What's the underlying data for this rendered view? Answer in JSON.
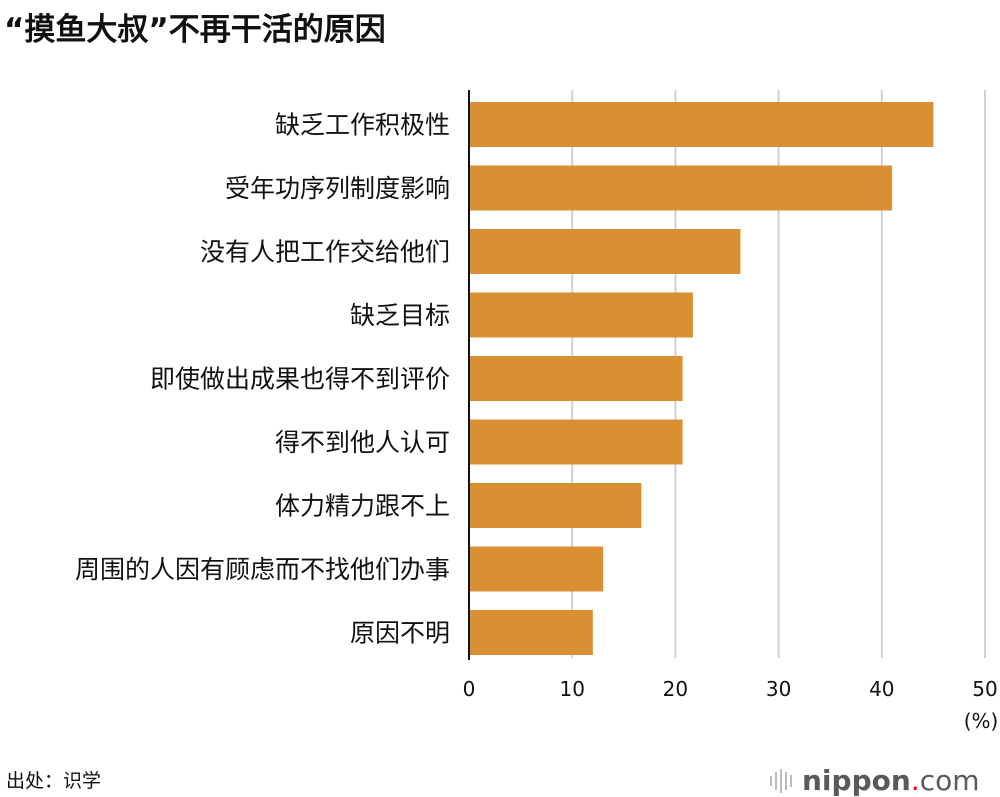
{
  "chart_data": {
    "type": "bar",
    "orientation": "horizontal",
    "title": "“摸鱼大叔”不再干活的原因",
    "categories": [
      "缺乏工作积极性",
      "受年功序列制度影响",
      "没有人把工作交给他们",
      "缺乏目标",
      "即使做出成果也得不到评价",
      "得不到他人认可",
      "体力精力跟不上",
      "周围的人因有顾虑而不找他们办事",
      "原因不明"
    ],
    "values": [
      45.0,
      41.0,
      26.3,
      21.7,
      20.7,
      20.7,
      16.7,
      13.0,
      12.0
    ],
    "xlabel": "(%)",
    "xlim": [
      0,
      50
    ],
    "xticks": [
      "0",
      "10",
      "20",
      "30",
      "40",
      "50"
    ],
    "grid": true,
    "bar_color": "#d99034",
    "grid_color": "#d0d0d0"
  },
  "source": "出处：识学",
  "logo": {
    "name": "nippon",
    "dot": ".",
    "tld": "com"
  }
}
